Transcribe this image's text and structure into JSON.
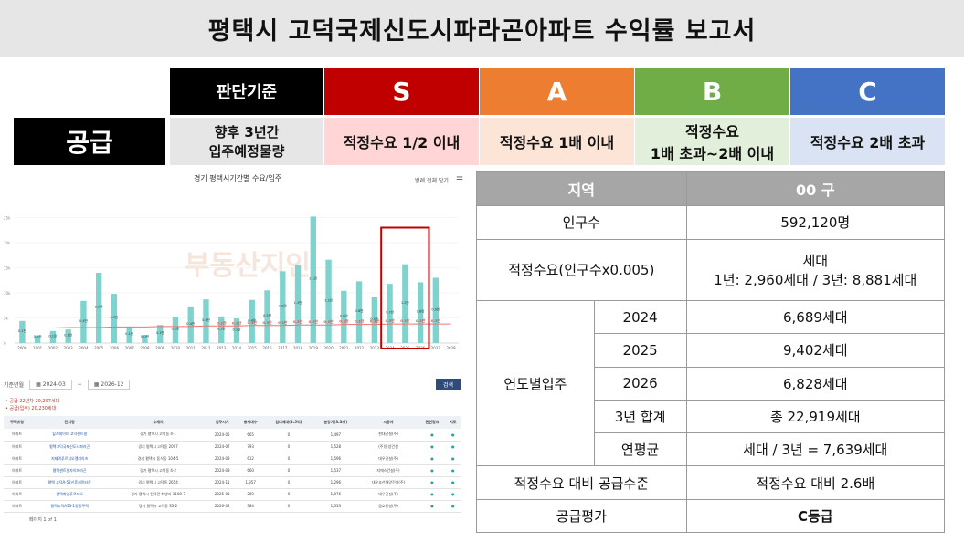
{
  "title": "평택시 고덕국제신도시파라곤아파트 수익률 보고서",
  "criteria": {
    "header_label": "판단기준",
    "grades": [
      {
        "label": "S",
        "color": "#c00000"
      },
      {
        "label": "A",
        "color": "#ed7d31"
      },
      {
        "label": "B",
        "color": "#70ad47"
      },
      {
        "label": "C",
        "color": "#4472c4"
      }
    ],
    "row_label": "공급",
    "row_desc": "향후 3년간\n입주예정물량",
    "cells": [
      {
        "text": "적정수요 1/2 이내",
        "color": "#ffd5d5"
      },
      {
        "text": "적정수요 1배 이내",
        "color": "#fce4d6"
      },
      {
        "text": "적정수요\n1배 초과~2배 이내",
        "color": "#e2efda"
      },
      {
        "text": "적정수요 2배 초과",
        "color": "#dae3f3"
      }
    ]
  },
  "screenshot": {
    "chart_title": "경기 평택시기간별 수요/입주",
    "menu_label": "범례 전체 닫기",
    "watermark": "부동산지인",
    "filter_label": "기준년월",
    "from": "2024-03",
    "to": "2026-12",
    "search_button": "검색",
    "notes": [
      "• 공급 22년차 20,297세대",
      "• 공급(입주) 20,230세대"
    ],
    "table_headers": [
      "주택유형",
      "단지명",
      "소재지",
      "입주시기",
      "총세대수",
      "임대세대(3.5억)",
      "분양가(3.3㎡)",
      "시공사",
      "관련링크",
      "지도"
    ],
    "table_rows": [
      [
        "아파트",
        "힐스테이트 고덕센트럴",
        "경기 평택시 고덕동 4-1",
        "2024-05",
        "665",
        "0",
        "1,497",
        "현대건설(주)"
      ],
      [
        "아파트",
        "평택고덕국제신도시파라곤",
        "경기 평택시 고덕동 2097",
        "2024-07",
        "793",
        "0",
        "1,528",
        "(주)동양건설"
      ],
      [
        "아파트",
        "지제역푸르지오엘리아츠",
        "경기 평택시 동삭동 104-5",
        "2024-08",
        "612",
        "0",
        "1,596",
        "대우건설(주)"
      ],
      [
        "아파트",
        "평택센트럴자이파라곤",
        "경기 평택시 고덕동 4-2",
        "2024-08",
        "660",
        "0",
        "1,537",
        "지에스건설(주)"
      ],
      [
        "아파트",
        "평택 고덕A-52신혼희망타운",
        "경기 평택시 고덕동 2654",
        "2024-11",
        "1,357",
        "0",
        "1,296",
        "대우조선해양건설(주)"
      ],
      [
        "아파트",
        "평택화양푸르지오",
        "경기 평택시 현덕면 화양리 1108-7",
        "2025-01",
        "289",
        "0",
        "1,076",
        "대우건설(주)"
      ],
      [
        "아파트",
        "평택고덕A53-1공동주택",
        "경기 평택시 고덕동 S3-2",
        "2026-02",
        "384",
        "0",
        "1,333",
        "금호건설(주)"
      ]
    ],
    "pager_label": "페이지 1 of 1"
  },
  "chart_data": {
    "type": "bar",
    "title": "경기 평택시기간별 수요/입주",
    "categories": [
      "2000",
      "2001",
      "2002",
      "2003",
      "2004",
      "2005",
      "2006",
      "2007",
      "2008",
      "2009",
      "2010",
      "2011",
      "2012",
      "2013",
      "2014",
      "2015",
      "2016",
      "2017",
      "2018",
      "2019",
      "2020",
      "2021",
      "2022",
      "2023",
      "2024",
      "2025",
      "2026",
      "2027",
      "2028"
    ],
    "series": [
      {
        "values": [
          0.44,
          0.15,
          0.24,
          0.27,
          0.84,
          1.4,
          0.98,
          0.32,
          0.16,
          0.36,
          0.52,
          0.73,
          0.87,
          0.53,
          0.49,
          0.86,
          1.05,
          1.43,
          1.56,
          2.52,
          1.66,
          1.04,
          1.23,
          0.91,
          1.18,
          1.57,
          1.21,
          1.3,
          0
        ]
      },
      {
        "values": [
          0.3,
          0.3,
          0.3,
          0.31,
          0.31,
          0.31,
          0.32,
          0.32,
          0.32,
          0.33,
          0.33,
          0.33,
          0.34,
          0.34,
          0.34,
          0.35,
          0.35,
          0.35,
          0.36,
          0.36,
          0.36,
          0.37,
          0.37,
          0.37,
          0.38,
          0.38,
          0.38,
          0.38,
          0.38
        ]
      }
    ],
    "bar_labels": [
      "0.1만",
      "0.0만",
      "0.1만",
      "0.1만",
      "0.4만",
      "0.9만",
      "0.5만",
      "0.1만",
      "0.0만",
      "0.1만",
      "0.2만",
      "0.4만",
      "0.4만",
      "0.1만",
      "0.1만",
      "0.4만",
      "0.5만",
      "1.0만",
      "1.1만",
      "2.1만",
      "1.2만",
      "0.6만",
      "0.8만",
      "0.5만",
      "0.7만",
      "1.2만",
      "0.8만",
      "0.9만",
      ""
    ],
    "line_labels": [
      "",
      "",
      "",
      "",
      "",
      "",
      "",
      "",
      "",
      "",
      "",
      "",
      "",
      "0.2만",
      "0.3만",
      "0.3만",
      "0.3만",
      "0.3만",
      "0.3만",
      "0.3만",
      "0.3만",
      "0.3만",
      "0.3만",
      "0.3만",
      "0.3만",
      "0.3만",
      "0.3만",
      "0.3만",
      ""
    ],
    "ytick_labels": [
      "0",
      "5k",
      "10k",
      "15k",
      "20k",
      "25k"
    ],
    "ylim": [
      0,
      2.8
    ],
    "colors": {
      "bar": "#7fd3cf",
      "line": "#ee7474",
      "highlight": "#c00000"
    },
    "highlight_categories": [
      "2024",
      "2026"
    ]
  },
  "summary_table": {
    "header": [
      "지역",
      "00 구"
    ],
    "population_label": "인구수",
    "population_value": "592,120명",
    "demand_label": "적정수요(인구수x0.005)",
    "demand_value": "세대\n1년: 2,960세대 / 3년: 8,881세대",
    "yearly_label": "연도별입주",
    "years": [
      {
        "year": "2024",
        "value": "6,689세대"
      },
      {
        "year": "2025",
        "value": "9,402세대"
      },
      {
        "year": "2026",
        "value": "6,828세대"
      },
      {
        "year": "3년 합계",
        "value": "총 22,919세대"
      },
      {
        "year": "연평균",
        "value": "세대 / 3년 = 7,639세대"
      }
    ],
    "ratio_label": "적정수요 대비 공급수준",
    "ratio_value": "적정수요 대비   2.6배",
    "eval_label": "공급평가",
    "eval_value": "C등급"
  }
}
